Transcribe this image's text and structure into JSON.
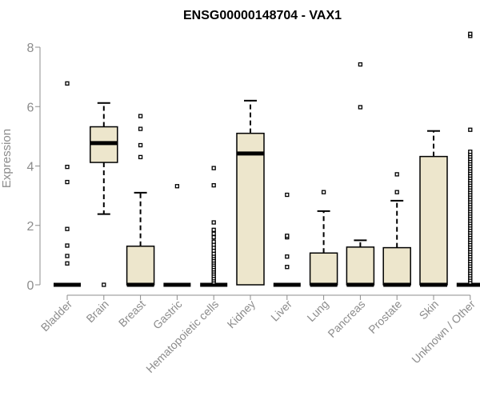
{
  "chart_data": {
    "type": "boxplot",
    "title": "ENSG00000148704 - VAX1",
    "xlabel": "",
    "ylabel": "Expression",
    "ylim": [
      0,
      8.5
    ],
    "yticks": [
      0,
      2,
      4,
      6,
      8
    ],
    "grid": false,
    "categories": [
      "Bladder",
      "Brain",
      "Breast",
      "Gastric",
      "Hematopoietic cells",
      "Kidney",
      "Liver",
      "Lung",
      "Pancreas",
      "Prostate",
      "Skin",
      "Unknown / Other"
    ],
    "boxes": [
      {
        "category": "Bladder",
        "q1": 0,
        "median": 0,
        "q3": 0,
        "whisker_low": 0,
        "whisker_high": 0,
        "outliers": [
          0.72,
          0.97,
          1.32,
          1.88,
          3.46,
          3.97,
          6.78
        ]
      },
      {
        "category": "Brain",
        "q1": 4.12,
        "median": 4.77,
        "q3": 5.32,
        "whisker_low": 2.38,
        "whisker_high": 6.12,
        "outliers": [
          0
        ]
      },
      {
        "category": "Breast",
        "q1": 0,
        "median": 0,
        "q3": 1.3,
        "whisker_low": 0,
        "whisker_high": 3.1,
        "outliers": [
          4.3,
          4.7,
          5.25,
          5.68
        ]
      },
      {
        "category": "Gastric",
        "q1": 0,
        "median": 0,
        "q3": 0,
        "whisker_low": 0,
        "whisker_high": 0,
        "outliers": [
          3.32
        ]
      },
      {
        "category": "Hematopoietic cells",
        "q1": 0,
        "median": 0,
        "q3": 0,
        "whisker_low": 0,
        "whisker_high": 0,
        "outliers": [
          0.08,
          0.15,
          0.22,
          0.3,
          0.38,
          0.45,
          0.52,
          0.6,
          0.68,
          0.75,
          0.82,
          0.9,
          0.97,
          1.05,
          1.15,
          1.25,
          1.35,
          1.45,
          1.6,
          1.72,
          1.85,
          2.1,
          3.35,
          3.93
        ]
      },
      {
        "category": "Kidney",
        "q1": 0,
        "median": 4.42,
        "q3": 5.1,
        "whisker_low": 0,
        "whisker_high": 6.2,
        "outliers": []
      },
      {
        "category": "Liver",
        "q1": 0,
        "median": 0,
        "q3": 0,
        "whisker_low": 0,
        "whisker_high": 0,
        "outliers": [
          0.6,
          0.95,
          1.6,
          1.65,
          3.03
        ]
      },
      {
        "category": "Lung",
        "q1": 0,
        "median": 0,
        "q3": 1.07,
        "whisker_low": 0,
        "whisker_high": 2.48,
        "outliers": [
          3.12
        ]
      },
      {
        "category": "Pancreas",
        "q1": 0,
        "median": 0,
        "q3": 1.27,
        "whisker_low": 0,
        "whisker_high": 1.5,
        "outliers": [
          5.98,
          7.42
        ]
      },
      {
        "category": "Prostate",
        "q1": 0,
        "median": 0,
        "q3": 1.25,
        "whisker_low": 0,
        "whisker_high": 2.83,
        "outliers": [
          3.12,
          3.72
        ]
      },
      {
        "category": "Skin",
        "q1": 0,
        "median": 0,
        "q3": 4.32,
        "whisker_low": 0,
        "whisker_high": 5.18,
        "outliers": []
      },
      {
        "category": "Unknown / Other",
        "q1": 0,
        "median": 0,
        "q3": 0,
        "whisker_low": 0,
        "whisker_high": 0,
        "outliers": [
          0.08,
          0.16,
          0.24,
          0.32,
          0.4,
          0.48,
          0.56,
          0.64,
          0.72,
          0.8,
          0.88,
          0.96,
          1.04,
          1.12,
          1.2,
          1.28,
          1.36,
          1.44,
          1.52,
          1.6,
          1.68,
          1.76,
          1.84,
          1.92,
          2.0,
          2.08,
          2.16,
          2.24,
          2.32,
          2.4,
          2.48,
          2.56,
          2.64,
          2.72,
          2.8,
          2.88,
          2.96,
          3.04,
          3.12,
          3.2,
          3.28,
          3.36,
          3.44,
          3.52,
          3.6,
          3.68,
          3.76,
          3.84,
          3.92,
          4.0,
          4.08,
          4.16,
          4.24,
          4.32,
          4.4,
          4.48,
          5.22,
          8.38,
          8.45
        ]
      }
    ],
    "colors": {
      "box_fill": "#ede6cc",
      "stroke": "#000000",
      "axis": "#8c8c8c",
      "title": "#000000"
    }
  }
}
